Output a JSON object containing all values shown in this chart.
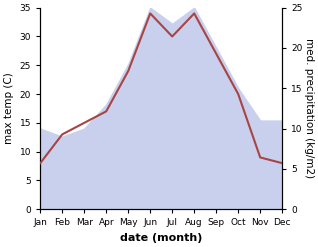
{
  "months": [
    "Jan",
    "Feb",
    "Mar",
    "Apr",
    "May",
    "Jun",
    "Jul",
    "Aug",
    "Sep",
    "Oct",
    "Nov",
    "Dec"
  ],
  "temperature": [
    8,
    13,
    15,
    17,
    24,
    34,
    30,
    34,
    27,
    20,
    9,
    8
  ],
  "precipitation": [
    10,
    9,
    10,
    13,
    18,
    25,
    23,
    25,
    20,
    15,
    11,
    11
  ],
  "temp_color": "#a84444",
  "precip_color_fill": "#c8d0ee",
  "temp_ylim": [
    0,
    35
  ],
  "precip_ylim": [
    0,
    25
  ],
  "temp_yticks": [
    0,
    5,
    10,
    15,
    20,
    25,
    30,
    35
  ],
  "precip_yticks": [
    0,
    5,
    10,
    15,
    20,
    25
  ],
  "xlabel": "date (month)",
  "ylabel_left": "max temp (C)",
  "ylabel_right": "med. precipitation (kg/m2)",
  "axis_label_fontsize": 7.5,
  "tick_fontsize": 6.5,
  "xlabel_fontsize": 8,
  "xlabel_fontweight": "bold"
}
